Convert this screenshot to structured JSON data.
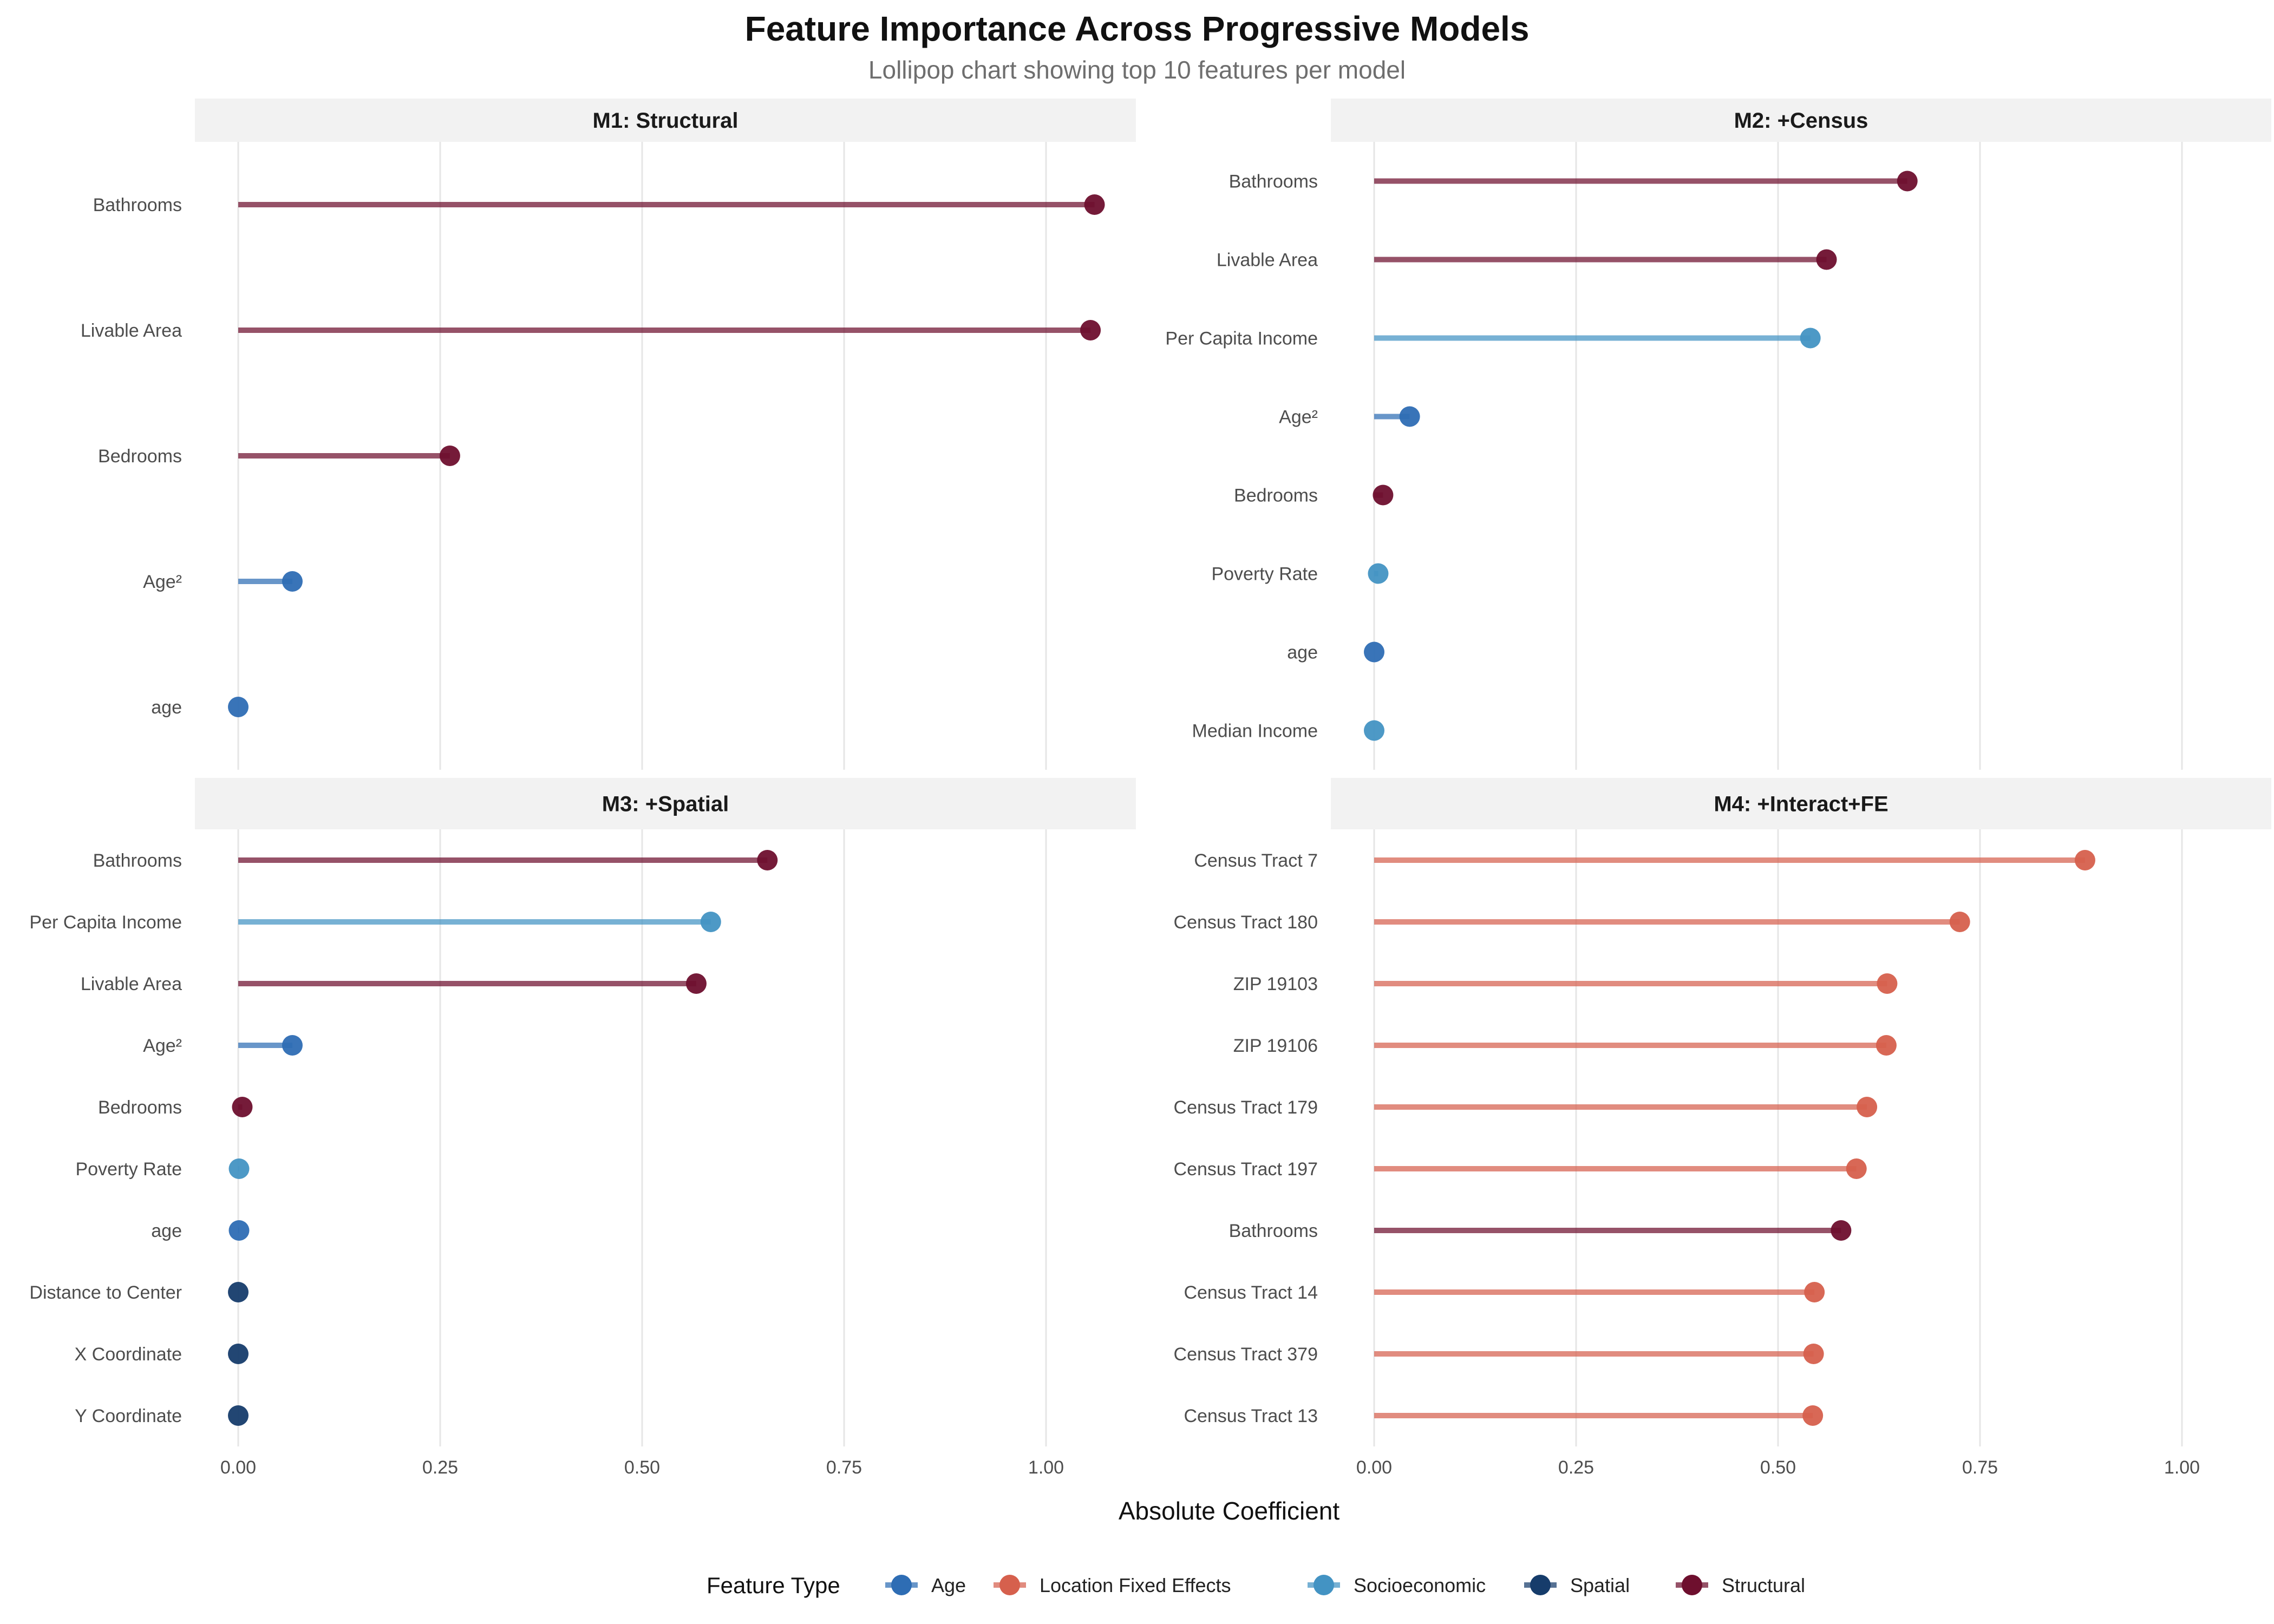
{
  "title": "Feature Importance Across Progressive Models",
  "subtitle": "Lollipop chart showing top 10 features per model",
  "xlabel": "Absolute Coefficient",
  "legend": {
    "title": "Feature Type",
    "position": "bottom",
    "items": [
      {
        "label": "Age",
        "color": "#2E6DB4"
      },
      {
        "label": "Location Fixed Effects",
        "color": "#D6604D"
      },
      {
        "label": "Socioeconomic",
        "color": "#4393C3"
      },
      {
        "label": "Spatial",
        "color": "#163C6B"
      },
      {
        "label": "Structural",
        "color": "#6E0F2E"
      }
    ]
  },
  "chart_data": [
    {
      "type": "lollipop",
      "panel": "M1: Structural",
      "xlim": [
        0,
        1.05
      ],
      "xticks": [
        "0.00",
        "0.25",
        "0.50",
        "0.75",
        "1.00"
      ],
      "grid": true,
      "points": [
        {
          "label": "Bathrooms",
          "value": 1.06,
          "type": "Structural"
        },
        {
          "label": "Livable Area",
          "value": 1.055,
          "type": "Structural"
        },
        {
          "label": "Bedrooms",
          "value": 0.262,
          "type": "Structural"
        },
        {
          "label": "Age²",
          "value": 0.067,
          "type": "Age"
        },
        {
          "label": "age",
          "value": 0.0,
          "type": "Age"
        }
      ]
    },
    {
      "type": "lollipop",
      "panel": "M2: +Census",
      "xlim": [
        0,
        1.05
      ],
      "xticks": [
        "0.00",
        "0.25",
        "0.50",
        "0.75",
        "1.00"
      ],
      "grid": true,
      "points": [
        {
          "label": "Bathrooms",
          "value": 0.66,
          "type": "Structural"
        },
        {
          "label": "Livable Area",
          "value": 0.56,
          "type": "Structural"
        },
        {
          "label": "Per Capita Income",
          "value": 0.54,
          "type": "Socioeconomic"
        },
        {
          "label": "Age²",
          "value": 0.044,
          "type": "Age"
        },
        {
          "label": "Bedrooms",
          "value": 0.011,
          "type": "Structural"
        },
        {
          "label": "Poverty Rate",
          "value": 0.005,
          "type": "Socioeconomic"
        },
        {
          "label": "age",
          "value": 0.0,
          "type": "Age"
        },
        {
          "label": "Median Income",
          "value": 0.0,
          "type": "Socioeconomic"
        }
      ]
    },
    {
      "type": "lollipop",
      "panel": "M3: +Spatial",
      "xlim": [
        0,
        1.05
      ],
      "xticks": [
        "0.00",
        "0.25",
        "0.50",
        "0.75",
        "1.00"
      ],
      "grid": true,
      "points": [
        {
          "label": "Bathrooms",
          "value": 0.655,
          "type": "Structural"
        },
        {
          "label": "Per Capita Income",
          "value": 0.585,
          "type": "Socioeconomic"
        },
        {
          "label": "Livable Area",
          "value": 0.567,
          "type": "Structural"
        },
        {
          "label": "Age²",
          "value": 0.067,
          "type": "Age"
        },
        {
          "label": "Bedrooms",
          "value": 0.005,
          "type": "Structural"
        },
        {
          "label": "Poverty Rate",
          "value": 0.001,
          "type": "Socioeconomic"
        },
        {
          "label": "age",
          "value": 0.001,
          "type": "Age"
        },
        {
          "label": "Distance to Center",
          "value": 0.0,
          "type": "Spatial"
        },
        {
          "label": "X Coordinate",
          "value": 0.0,
          "type": "Spatial"
        },
        {
          "label": "Y Coordinate",
          "value": 0.0,
          "type": "Spatial"
        }
      ]
    },
    {
      "type": "lollipop",
      "panel": "M4: +Interact+FE",
      "xlim": [
        0,
        1.05
      ],
      "xticks": [
        "0.00",
        "0.25",
        "0.50",
        "0.75",
        "1.00"
      ],
      "grid": true,
      "points": [
        {
          "label": "Census Tract 7",
          "value": 0.88,
          "type": "Location Fixed Effects"
        },
        {
          "label": "Census Tract 180",
          "value": 0.725,
          "type": "Location Fixed Effects"
        },
        {
          "label": "ZIP 19103",
          "value": 0.635,
          "type": "Location Fixed Effects"
        },
        {
          "label": "ZIP 19106",
          "value": 0.634,
          "type": "Location Fixed Effects"
        },
        {
          "label": "Census Tract 179",
          "value": 0.61,
          "type": "Location Fixed Effects"
        },
        {
          "label": "Census Tract 197",
          "value": 0.597,
          "type": "Location Fixed Effects"
        },
        {
          "label": "Bathrooms",
          "value": 0.578,
          "type": "Structural"
        },
        {
          "label": "Census Tract 14",
          "value": 0.545,
          "type": "Location Fixed Effects"
        },
        {
          "label": "Census Tract 379",
          "value": 0.544,
          "type": "Location Fixed Effects"
        },
        {
          "label": "Census Tract 13",
          "value": 0.543,
          "type": "Location Fixed Effects"
        }
      ]
    }
  ]
}
